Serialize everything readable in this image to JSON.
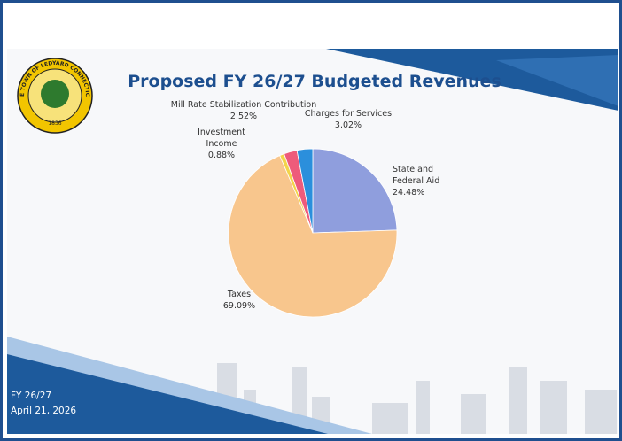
{
  "chart_data": {
    "type": "pie",
    "title": "Proposed FY 26/27 Budgeted Revenues",
    "categories": [
      "State and Federal Aid",
      "Taxes",
      "Investment Income",
      "Mill Rate Stabilization Contribution",
      "Charges for Services"
    ],
    "values": [
      24.48,
      69.09,
      0.88,
      2.52,
      3.02
    ],
    "value_labels": [
      "24.48%",
      "69.09%",
      "0.88%",
      "2.52%",
      "3.02%"
    ],
    "colors": [
      "#8f9edd",
      "#f8c68d",
      "#f3d44a",
      "#ee5b7b",
      "#2b8fdc"
    ]
  },
  "footer": {
    "line1": "FY 26/27",
    "line2": "April 21, 2026"
  },
  "seal": {
    "ring": "THE TOWN OF LEDYARD CONNECTICUT",
    "year": "1836"
  }
}
